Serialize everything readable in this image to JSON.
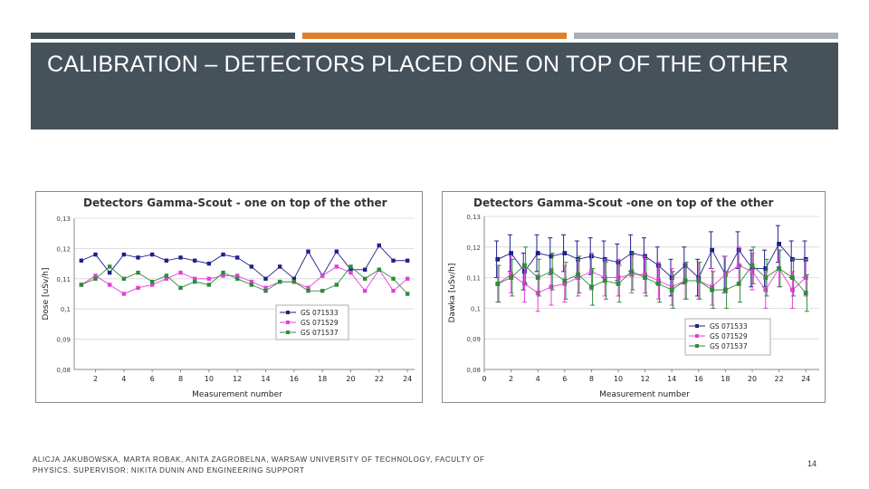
{
  "colors": {
    "accent_left": "#46525a",
    "accent_mid": "#e07e2a",
    "accent_right": "#a8b0b6",
    "title_bg": "#46525a",
    "series": [
      "#1f1f8a",
      "#e23fd8",
      "#2e8b3a"
    ]
  },
  "slide": {
    "title": "CALIBRATION – DETECTORS PLACED ONE ON TOP OF THE OTHER",
    "footer": "ALICJA JAKUBOWSKA, MARTA ROBAK, ANITA ZAGROBELNA, WARSAW UNIVERSITY OF TECHNOLOGY, FACULTY OF PHYSICS. SUPERVISOR: NIKITA DUNIN AND ENGINEERING SUPPORT",
    "page_number": "14"
  },
  "chart_data": [
    {
      "type": "line",
      "title": "Detectors Gamma-Scout - one on top of the other",
      "xlabel": "Measurement number",
      "ylabel": "Dose [uSv/h]",
      "ylim": [
        0.08,
        0.13
      ],
      "yticks": [
        "0,08",
        "0,09",
        "0,1",
        "0,11",
        "0,12",
        "0,13"
      ],
      "xticks": [
        "2",
        "4",
        "6",
        "8",
        "10",
        "12",
        "14",
        "16",
        "18",
        "20",
        "22",
        "24"
      ],
      "x": [
        1,
        2,
        3,
        4,
        5,
        6,
        7,
        8,
        9,
        10,
        11,
        12,
        13,
        14,
        15,
        16,
        17,
        18,
        19,
        20,
        21,
        22,
        23,
        24
      ],
      "legend_position": "bottom-right",
      "series": [
        {
          "name": "GS 071533",
          "values": [
            0.116,
            0.118,
            0.112,
            0.118,
            0.117,
            0.118,
            0.116,
            0.117,
            0.116,
            0.115,
            0.118,
            0.117,
            0.114,
            0.11,
            0.114,
            0.11,
            0.119,
            0.111,
            0.119,
            0.113,
            0.113,
            0.121,
            0.116,
            0.116
          ]
        },
        {
          "name": "GS 071529",
          "values": [
            0.108,
            0.111,
            0.108,
            0.105,
            0.107,
            0.108,
            0.11,
            0.112,
            0.11,
            0.11,
            0.111,
            0.111,
            0.109,
            0.107,
            0.109,
            0.109,
            0.107,
            0.111,
            0.114,
            0.112,
            0.106,
            0.113,
            0.106,
            0.11
          ]
        },
        {
          "name": "GS 071537",
          "values": [
            0.108,
            0.11,
            0.114,
            0.11,
            0.112,
            0.109,
            0.111,
            0.107,
            0.109,
            0.108,
            0.112,
            0.11,
            0.108,
            0.106,
            0.109,
            0.109,
            0.106,
            0.106,
            0.108,
            0.114,
            0.11,
            0.113,
            0.11,
            0.105
          ]
        }
      ]
    },
    {
      "type": "line",
      "title": "Detectors Gamma-Scout -one on top of the other",
      "xlabel": "Measurement number",
      "ylabel": "Dawka [uSv/h]",
      "ylim": [
        0.08,
        0.13
      ],
      "xlim": [
        0,
        25
      ],
      "yticks": [
        "0,08",
        "0,09",
        "0,1",
        "0,11",
        "0,12",
        "0,13"
      ],
      "xticks": [
        "0",
        "2",
        "4",
        "6",
        "8",
        "10",
        "12",
        "14",
        "16",
        "18",
        "20",
        "22",
        "24"
      ],
      "x": [
        1,
        2,
        3,
        4,
        5,
        6,
        7,
        8,
        9,
        10,
        11,
        12,
        13,
        14,
        15,
        16,
        17,
        18,
        19,
        20,
        21,
        22,
        23,
        24
      ],
      "error_bar": 0.006,
      "legend_position": "bottom-right",
      "series": [
        {
          "name": "GS 071533",
          "values": [
            0.116,
            0.118,
            0.112,
            0.118,
            0.117,
            0.118,
            0.116,
            0.117,
            0.116,
            0.115,
            0.118,
            0.117,
            0.114,
            0.11,
            0.114,
            0.11,
            0.119,
            0.111,
            0.119,
            0.113,
            0.113,
            0.121,
            0.116,
            0.116
          ]
        },
        {
          "name": "GS 071529",
          "values": [
            0.108,
            0.111,
            0.108,
            0.105,
            0.107,
            0.108,
            0.11,
            0.112,
            0.11,
            0.11,
            0.111,
            0.111,
            0.109,
            0.107,
            0.109,
            0.109,
            0.107,
            0.111,
            0.114,
            0.112,
            0.106,
            0.113,
            0.106,
            0.11
          ]
        },
        {
          "name": "GS 071537",
          "values": [
            0.108,
            0.11,
            0.114,
            0.11,
            0.112,
            0.109,
            0.111,
            0.107,
            0.109,
            0.108,
            0.112,
            0.11,
            0.108,
            0.106,
            0.109,
            0.109,
            0.106,
            0.106,
            0.108,
            0.114,
            0.11,
            0.113,
            0.11,
            0.105
          ]
        }
      ]
    }
  ]
}
